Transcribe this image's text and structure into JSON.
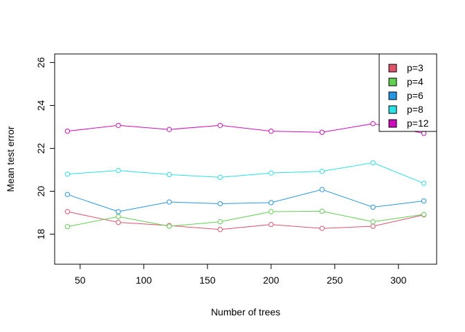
{
  "chart_data": {
    "type": "line",
    "title": "",
    "xlabel": "Number of trees",
    "ylabel": "Mean test error",
    "x": [
      40,
      80,
      120,
      160,
      200,
      240,
      280,
      320
    ],
    "xlim": [
      30,
      330
    ],
    "ylim": [
      16.6,
      26.4
    ],
    "xticks": [
      50,
      100,
      150,
      200,
      250,
      300
    ],
    "yticks": [
      18,
      20,
      22,
      24,
      26
    ],
    "grid": false,
    "legend_position": "top-right",
    "series": [
      {
        "name": "p=3",
        "color": "#DF536B",
        "values": [
          19.05,
          18.55,
          18.4,
          18.22,
          18.45,
          18.27,
          18.37,
          18.9
        ]
      },
      {
        "name": "p=4",
        "color": "#61D04F",
        "values": [
          18.35,
          18.82,
          18.37,
          18.58,
          19.05,
          19.07,
          18.58,
          18.92
        ]
      },
      {
        "name": "p=6",
        "color": "#2297E6",
        "values": [
          19.85,
          19.05,
          19.5,
          19.42,
          19.47,
          20.08,
          19.26,
          19.55
        ]
      },
      {
        "name": "p=8",
        "color": "#28E2E5",
        "values": [
          20.8,
          20.97,
          20.78,
          20.65,
          20.85,
          20.93,
          21.33,
          20.37
        ]
      },
      {
        "name": "p=12",
        "color": "#CD0BBC",
        "values": [
          22.8,
          23.07,
          22.88,
          23.07,
          22.8,
          22.75,
          23.15,
          22.7
        ]
      }
    ]
  }
}
